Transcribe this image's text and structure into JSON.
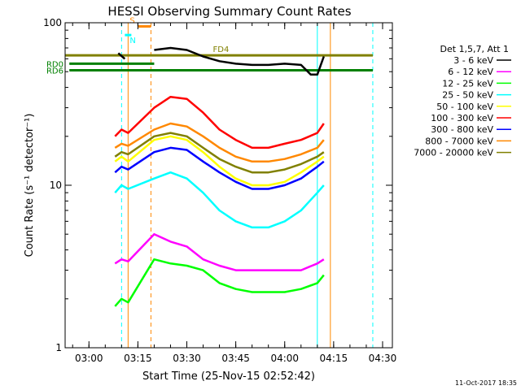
{
  "chart_data": {
    "type": "line",
    "title": "HESSI Observing Summary Count Rates",
    "xlabel": "Start Time (25-Nov-15 02:52:42)",
    "ylabel": "Count Rate (s⁻¹ detector⁻¹)",
    "y_scale": "log",
    "xlim": [
      "02:52:42",
      "04:33:00"
    ],
    "ylim": [
      1,
      100
    ],
    "x_ticks": [
      "03:00",
      "03:15",
      "03:30",
      "03:45",
      "04:00",
      "04:15",
      "04:30"
    ],
    "y_ticks": [
      "1",
      "10",
      "100"
    ],
    "grid": false,
    "legend_title": "Det 1,5,7, Att 1",
    "legend_position": "right",
    "timestamp": "11-Oct-2017 18:35",
    "series": [
      {
        "name": "3 - 6 keV",
        "color": "#000000",
        "x": [
          "03:03",
          "03:06",
          "03:09",
          "03:11",
          "03:13",
          "03:15",
          "03:18",
          "03:20",
          "03:25",
          "03:30",
          "03:35",
          "03:40",
          "03:45",
          "03:50",
          "03:55",
          "04:00",
          "04:05",
          "04:08",
          "04:10",
          "04:12",
          "04:14"
        ],
        "y": [
          null,
          null,
          65,
          60,
          null,
          null,
          null,
          68,
          70,
          68,
          62,
          58,
          56,
          55,
          55,
          56,
          55,
          48,
          48,
          62,
          null
        ]
      },
      {
        "name": "6 - 12 keV",
        "color": "#ff00ff",
        "x": [
          "03:08",
          "03:10",
          "03:12",
          "03:20",
          "03:25",
          "03:30",
          "03:35",
          "03:40",
          "03:45",
          "03:50",
          "03:55",
          "04:00",
          "04:05",
          "04:10",
          "04:12"
        ],
        "y": [
          3.3,
          3.5,
          3.4,
          5,
          4.5,
          4.2,
          3.5,
          3.2,
          3.0,
          3.0,
          3.0,
          3.0,
          3.0,
          3.3,
          3.5
        ]
      },
      {
        "name": "12 - 25 keV",
        "color": "#00ff00",
        "x": [
          "03:08",
          "03:10",
          "03:12",
          "03:20",
          "03:25",
          "03:30",
          "03:35",
          "03:40",
          "03:45",
          "03:50",
          "03:55",
          "04:00",
          "04:05",
          "04:10",
          "04:12"
        ],
        "y": [
          1.8,
          2.0,
          1.9,
          3.5,
          3.3,
          3.2,
          3.0,
          2.5,
          2.3,
          2.2,
          2.2,
          2.2,
          2.3,
          2.5,
          2.8
        ]
      },
      {
        "name": "25 - 50 keV",
        "color": "#00ffff",
        "x": [
          "03:08",
          "03:10",
          "03:12",
          "03:20",
          "03:25",
          "03:30",
          "03:35",
          "03:40",
          "03:45",
          "03:50",
          "03:55",
          "04:00",
          "04:05",
          "04:10",
          "04:12"
        ],
        "y": [
          9,
          10,
          9.5,
          11,
          12,
          11,
          9,
          7,
          6,
          5.5,
          5.5,
          6,
          7,
          9,
          10
        ]
      },
      {
        "name": "50 - 100 keV",
        "color": "#ffff00",
        "x": [
          "03:08",
          "03:10",
          "03:12",
          "03:20",
          "03:25",
          "03:30",
          "03:35",
          "03:40",
          "03:45",
          "03:50",
          "03:55",
          "04:00",
          "04:05",
          "04:10",
          "04:12"
        ],
        "y": [
          14,
          15,
          14,
          19,
          20,
          19,
          16,
          13,
          11,
          10,
          10,
          10.5,
          12,
          14,
          15
        ]
      },
      {
        "name": "100 - 300 keV",
        "color": "#ff0000",
        "x": [
          "03:08",
          "03:10",
          "03:12",
          "03:20",
          "03:25",
          "03:30",
          "03:35",
          "03:40",
          "03:45",
          "03:50",
          "03:55",
          "04:00",
          "04:05",
          "04:10",
          "04:12"
        ],
        "y": [
          20,
          22,
          21,
          30,
          35,
          34,
          28,
          22,
          19,
          17,
          17,
          18,
          19,
          21,
          24
        ]
      },
      {
        "name": "300 - 800 keV",
        "color": "#0000ff",
        "x": [
          "03:08",
          "03:10",
          "03:12",
          "03:20",
          "03:25",
          "03:30",
          "03:35",
          "03:40",
          "03:45",
          "03:50",
          "03:55",
          "04:00",
          "04:05",
          "04:10",
          "04:12"
        ],
        "y": [
          12,
          13,
          12.5,
          16,
          17,
          16.5,
          14,
          12,
          10.5,
          9.5,
          9.5,
          10,
          11,
          13,
          14
        ]
      },
      {
        "name": "800 - 7000 keV",
        "color": "#ff8800",
        "x": [
          "03:08",
          "03:10",
          "03:12",
          "03:20",
          "03:25",
          "03:30",
          "03:35",
          "03:40",
          "03:45",
          "03:50",
          "03:55",
          "04:00",
          "04:05",
          "04:10",
          "04:12"
        ],
        "y": [
          17,
          18,
          17.5,
          22,
          24,
          23,
          20,
          17,
          15,
          14,
          14,
          14.5,
          15.5,
          17,
          19
        ]
      },
      {
        "name": "7000 - 20000 keV",
        "color": "#808000",
        "x": [
          "03:08",
          "03:10",
          "03:12",
          "03:20",
          "03:25",
          "03:30",
          "03:35",
          "03:40",
          "03:45",
          "03:50",
          "03:55",
          "04:00",
          "04:05",
          "04:10",
          "04:12"
        ],
        "y": [
          15,
          16,
          15.5,
          20,
          21,
          20,
          17,
          14.5,
          13,
          12,
          12,
          12.5,
          13.5,
          15,
          16
        ]
      }
    ],
    "annotations": [
      {
        "label": "S",
        "color": "#ff8800",
        "x_start": "03:15",
        "x_end": "03:19",
        "y": 95
      },
      {
        "label": "N",
        "color": "#00ffff",
        "x_start": "03:11",
        "x_end": "03:13",
        "y": 84
      },
      {
        "label": "FD4",
        "color": "#808000",
        "x_start": "02:52:42",
        "x_end": "04:27",
        "y": 63
      },
      {
        "label": "RD0",
        "color": "#008000",
        "x_start": "02:54",
        "x_end": "03:20",
        "y": 56
      },
      {
        "label": "RD6",
        "color": "#008000",
        "x_start": "02:54",
        "x_end": "04:27",
        "y": 51
      }
    ],
    "vertical_lines": [
      {
        "x": "03:10",
        "color": "#00ffff",
        "style": "dashed"
      },
      {
        "x": "03:12",
        "color": "#ff8800",
        "style": "solid"
      },
      {
        "x": "03:19",
        "color": "#ff8800",
        "style": "dashed"
      },
      {
        "x": "04:10",
        "color": "#00ffff",
        "style": "solid"
      },
      {
        "x": "04:14",
        "color": "#ff8800",
        "style": "solid"
      },
      {
        "x": "04:27",
        "color": "#00ffff",
        "style": "dashed"
      }
    ]
  }
}
